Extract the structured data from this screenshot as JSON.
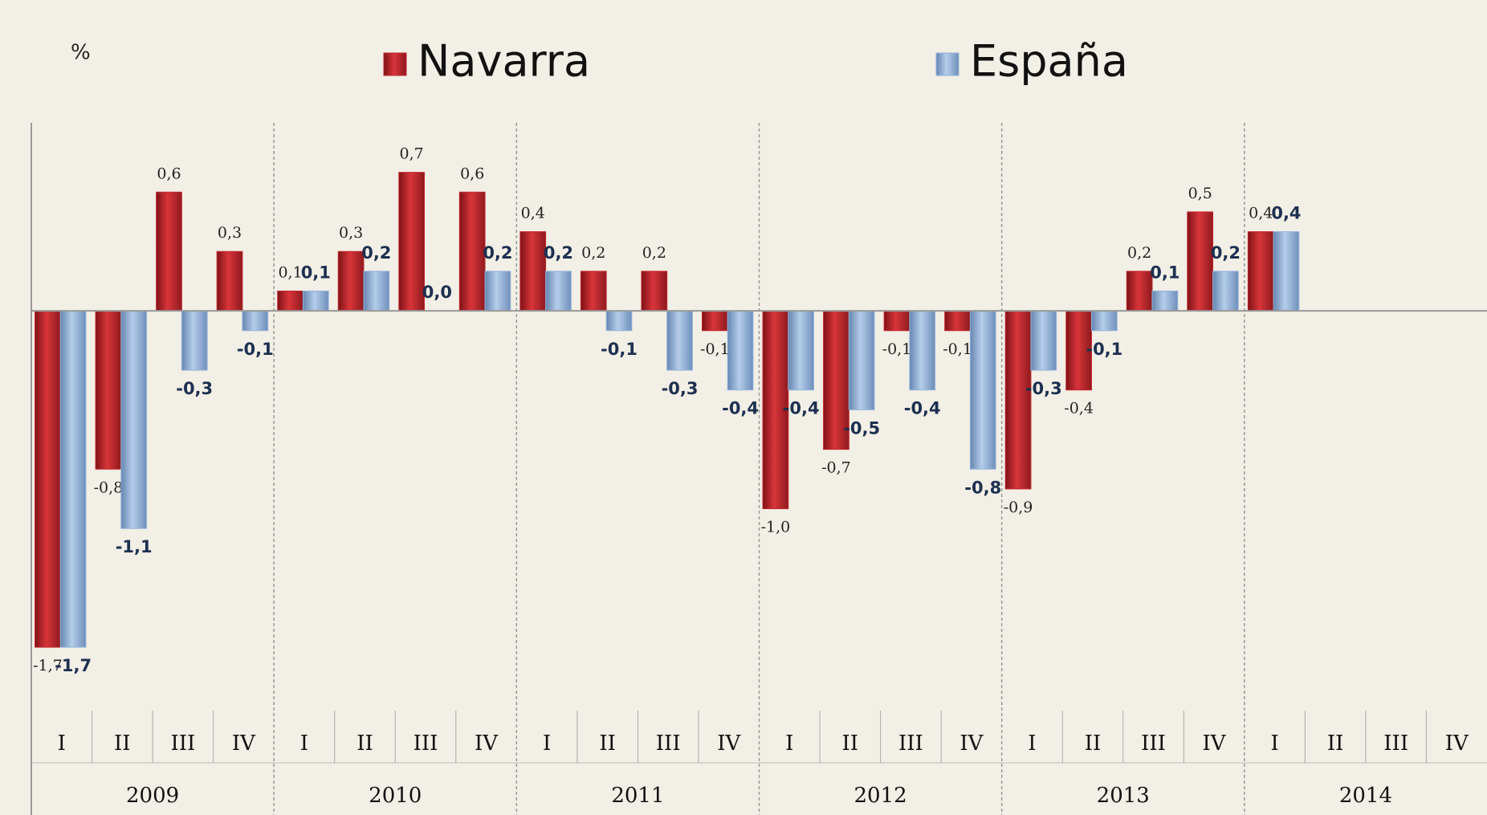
{
  "chart_data": {
    "type": "bar",
    "unit": "%",
    "categories": [
      "I",
      "II",
      "III",
      "IV",
      "I",
      "II",
      "III",
      "IV",
      "I",
      "II",
      "III",
      "IV",
      "I",
      "II",
      "III",
      "IV",
      "I",
      "II",
      "III",
      "IV",
      "I",
      "II",
      "III",
      "IV"
    ],
    "years": [
      "2009",
      "2010",
      "2011",
      "2012",
      "2013",
      "2014"
    ],
    "series": [
      {
        "name": "Navarra",
        "color": "#c4262c",
        "values": [
          -1.7,
          -0.8,
          0.6,
          0.3,
          0.1,
          0.3,
          0.7,
          0.6,
          0.4,
          0.2,
          0.2,
          -0.1,
          -1.0,
          -0.7,
          -0.1,
          -0.1,
          -0.9,
          -0.4,
          0.2,
          0.5,
          0.4,
          null,
          null,
          null
        ],
        "value_labels": [
          "-1,7",
          "-0,8",
          "0,6",
          "0,3",
          "0,1",
          "0,3",
          "0,7",
          "0,6",
          "0,4",
          "0,2",
          "0,2",
          "-0,1",
          "-1,0",
          "-0,7",
          "-0,1",
          "-0,1",
          "-0,9",
          "-0,4",
          "0,2",
          "0,5",
          "0,4",
          null,
          null,
          null
        ]
      },
      {
        "name": "España",
        "color": "#92b3dc",
        "values": [
          -1.7,
          -1.1,
          -0.3,
          -0.1,
          0.1,
          0.2,
          0.0,
          0.2,
          0.2,
          -0.1,
          -0.3,
          -0.4,
          -0.4,
          -0.5,
          -0.4,
          -0.8,
          -0.3,
          -0.1,
          0.1,
          0.2,
          0.4,
          null,
          null,
          null
        ],
        "value_labels": [
          "-1,7",
          "-1,1",
          "-0,3",
          "-0,1",
          "0,1",
          "0,2",
          "0,0",
          "0,2",
          "0,2",
          "-0,1",
          "-0,3",
          "-0,4",
          "-0,4",
          "-0,5",
          "-0,4",
          "-0,8",
          "-0,3",
          "-0,1",
          "0,1",
          "0,2",
          "0,4",
          null,
          null,
          null
        ]
      }
    ],
    "ylim": [
      -2.0,
      0.95
    ]
  }
}
